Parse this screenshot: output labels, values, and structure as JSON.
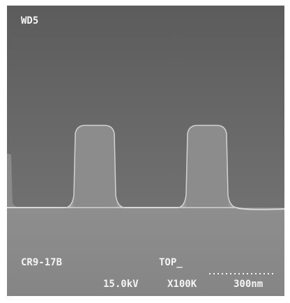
{
  "labels": {
    "working_distance": "WD5",
    "sample": "CR9-17B",
    "view": "TOP_",
    "voltage": "15.0kV",
    "magnification": "X100K",
    "scale_bar": "300nm"
  }
}
